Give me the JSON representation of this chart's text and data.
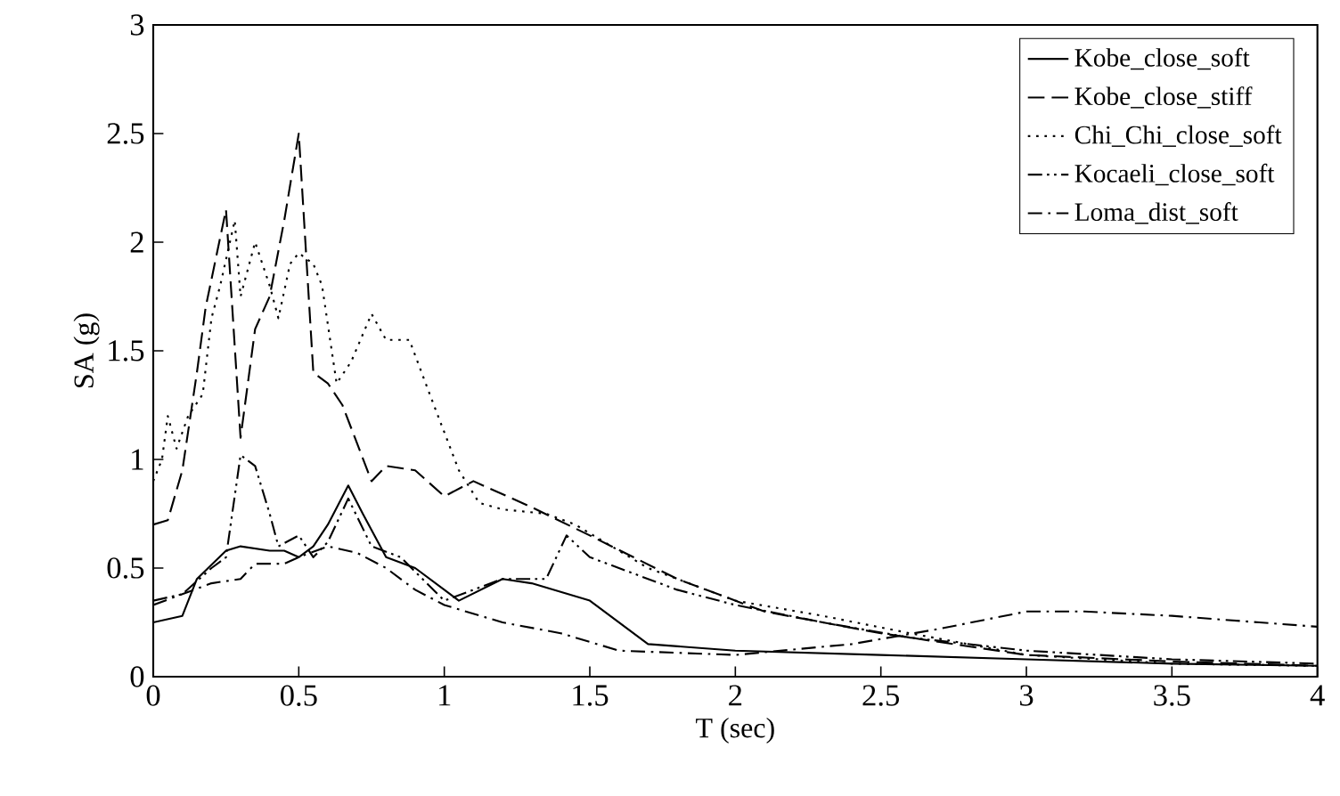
{
  "chart_data": {
    "type": "line",
    "xlabel": "T (sec)",
    "ylabel": "SA (g)",
    "xlim": [
      0,
      4
    ],
    "ylim": [
      0,
      3
    ],
    "xticks": [
      0,
      0.5,
      1,
      1.5,
      2,
      2.5,
      3,
      3.5,
      4
    ],
    "yticks": [
      0,
      0.5,
      1,
      1.5,
      2,
      2.5,
      3
    ],
    "grid": false,
    "legend": "top right",
    "marker": "none",
    "series": [
      {
        "name": "Kobe_close_soft",
        "color": "#000000",
        "line_style": "solid",
        "x": [
          0,
          0.1,
          0.15,
          0.25,
          0.3,
          0.4,
          0.45,
          0.5,
          0.55,
          0.6,
          0.67,
          0.72,
          0.8,
          0.9,
          1.0,
          1.05,
          1.2,
          1.3,
          1.5,
          1.7,
          2.0,
          2.5,
          3,
          3.5,
          4
        ],
        "values": [
          0.25,
          0.28,
          0.45,
          0.58,
          0.6,
          0.58,
          0.58,
          0.55,
          0.6,
          0.7,
          0.88,
          0.75,
          0.55,
          0.5,
          0.4,
          0.35,
          0.45,
          0.43,
          0.35,
          0.15,
          0.12,
          0.1,
          0.08,
          0.06,
          0.05
        ]
      },
      {
        "name": "Kobe_close_stiff",
        "color": "#000000",
        "line_style": "dashed",
        "x": [
          0,
          0.05,
          0.1,
          0.15,
          0.18,
          0.25,
          0.3,
          0.35,
          0.4,
          0.45,
          0.5,
          0.55,
          0.6,
          0.65,
          0.75,
          0.8,
          0.9,
          1.0,
          1.1,
          1.3,
          1.5,
          1.8,
          2.1,
          2.5,
          3,
          3.5,
          4
        ],
        "values": [
          0.7,
          0.72,
          0.95,
          1.4,
          1.7,
          2.15,
          1.1,
          1.6,
          1.75,
          2.1,
          2.5,
          1.4,
          1.35,
          1.25,
          0.9,
          0.97,
          0.95,
          0.83,
          0.9,
          0.78,
          0.65,
          0.45,
          0.3,
          0.2,
          0.1,
          0.07,
          0.05
        ]
      },
      {
        "name": "Chi_Chi_close_soft",
        "color": "#000000",
        "line_style": "dotted",
        "x": [
          0,
          0.03,
          0.05,
          0.08,
          0.12,
          0.17,
          0.2,
          0.23,
          0.28,
          0.3,
          0.35,
          0.4,
          0.43,
          0.47,
          0.5,
          0.55,
          0.58,
          0.63,
          0.68,
          0.75,
          0.8,
          0.88,
          0.95,
          1.05,
          1.12,
          1.2,
          1.35,
          1.45,
          1.7,
          2.0,
          2.3,
          2.6,
          3,
          3.5,
          4
        ],
        "values": [
          0.9,
          1.0,
          1.2,
          1.05,
          1.2,
          1.3,
          1.65,
          1.8,
          2.1,
          1.75,
          2.0,
          1.8,
          1.65,
          1.9,
          1.95,
          1.9,
          1.8,
          1.35,
          1.45,
          1.67,
          1.55,
          1.55,
          1.3,
          0.95,
          0.8,
          0.77,
          0.75,
          0.7,
          0.5,
          0.35,
          0.28,
          0.2,
          0.1,
          0.06,
          0.05
        ]
      },
      {
        "name": "Kocaeli_close_soft",
        "color": "#000000",
        "line_style": "dashdotdot",
        "x": [
          0,
          0.1,
          0.2,
          0.25,
          0.3,
          0.35,
          0.4,
          0.43,
          0.5,
          0.55,
          0.6,
          0.67,
          0.75,
          0.85,
          1.0,
          1.2,
          1.35,
          1.42,
          1.5,
          1.8,
          2.0,
          2.3,
          2.6,
          3,
          3.5,
          4
        ],
        "values": [
          0.35,
          0.38,
          0.5,
          0.55,
          1.02,
          0.97,
          0.75,
          0.6,
          0.65,
          0.55,
          0.62,
          0.82,
          0.6,
          0.55,
          0.35,
          0.45,
          0.45,
          0.65,
          0.55,
          0.4,
          0.33,
          0.25,
          0.18,
          0.12,
          0.08,
          0.06
        ]
      },
      {
        "name": "Loma_dist_soft",
        "color": "#000000",
        "line_style": "dashdot",
        "x": [
          0,
          0.1,
          0.2,
          0.3,
          0.35,
          0.45,
          0.5,
          0.6,
          0.7,
          0.8,
          0.9,
          1.0,
          1.2,
          1.4,
          1.6,
          2.0,
          2.4,
          2.7,
          3.0,
          3.2,
          3.5,
          3.8,
          4
        ],
        "values": [
          0.33,
          0.38,
          0.43,
          0.45,
          0.52,
          0.52,
          0.55,
          0.6,
          0.57,
          0.5,
          0.4,
          0.33,
          0.25,
          0.2,
          0.12,
          0.1,
          0.15,
          0.22,
          0.3,
          0.3,
          0.28,
          0.25,
          0.23
        ]
      }
    ]
  }
}
